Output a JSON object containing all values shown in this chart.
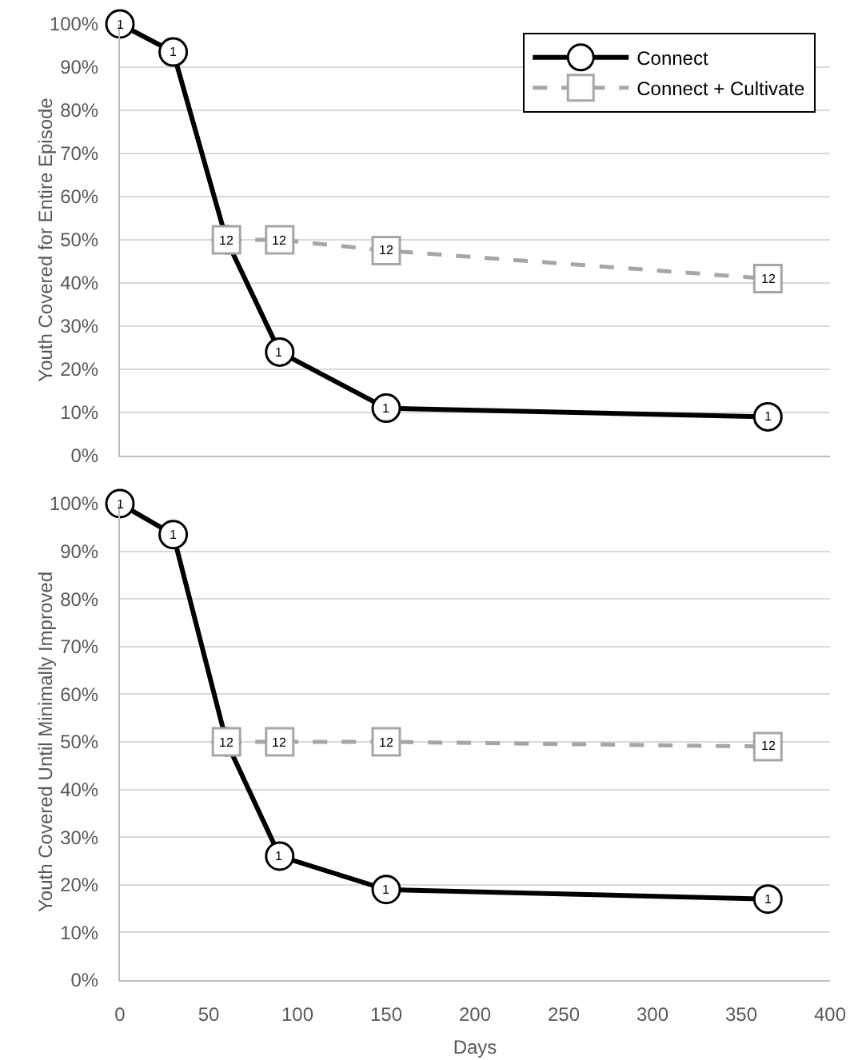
{
  "chart_data": [
    {
      "type": "line",
      "ylabel": "Youth Covered for Entire Episode",
      "xlim": [
        0,
        400
      ],
      "xticks": [
        0,
        50,
        100,
        150,
        200,
        250,
        300,
        350,
        400
      ],
      "ylim": [
        0,
        100
      ],
      "yticks": [
        {
          "value": 0,
          "label": "0%"
        },
        {
          "value": 10,
          "label": "10%"
        },
        {
          "value": 20,
          "label": "20%"
        },
        {
          "value": 30,
          "label": "30%"
        },
        {
          "value": 40,
          "label": "40%"
        },
        {
          "value": 50,
          "label": "50%"
        },
        {
          "value": 60,
          "label": "60%"
        },
        {
          "value": 70,
          "label": "70%"
        },
        {
          "value": 80,
          "label": "80%"
        },
        {
          "value": 90,
          "label": "90%"
        },
        {
          "value": 100,
          "label": "100%"
        }
      ],
      "tick_labels": "y",
      "grid": "y",
      "legend": "top right",
      "series": [
        {
          "name": "Connect",
          "color": "#000000",
          "marker": "circle",
          "line_style": "solid",
          "x": [
            0,
            30,
            60,
            90,
            150,
            365
          ],
          "values": [
            100,
            93.5,
            50,
            24,
            11,
            9
          ]
        },
        {
          "name": "Connect + Cultivate",
          "color": "#a6a6a6",
          "marker": "square",
          "line_style": "dashed",
          "x": [
            60,
            90,
            150,
            365
          ],
          "values": [
            50,
            50,
            47.5,
            41
          ]
        }
      ],
      "annotations": [
        {
          "text": "1",
          "x": 0,
          "y": 100
        },
        {
          "text": "1",
          "x": 30,
          "y": 93.5
        },
        {
          "text": "1",
          "x": 90,
          "y": 24
        },
        {
          "text": "1",
          "x": 150,
          "y": 11
        },
        {
          "text": "1",
          "x": 365,
          "y": 9
        },
        {
          "text": "12",
          "x": 60,
          "y": 50
        },
        {
          "text": "12",
          "x": 90,
          "y": 50
        },
        {
          "text": "12",
          "x": 150,
          "y": 47.5
        },
        {
          "text": "12",
          "x": 365,
          "y": 41
        }
      ]
    },
    {
      "type": "line",
      "xlabel": "Days",
      "ylabel": "Youth Covered Until Minimally Improved",
      "xlim": [
        0,
        400
      ],
      "xticks": [
        0,
        50,
        100,
        150,
        200,
        250,
        300,
        350,
        400
      ],
      "ylim": [
        0,
        100
      ],
      "yticks": [
        {
          "value": 0,
          "label": "0%"
        },
        {
          "value": 10,
          "label": "10%"
        },
        {
          "value": 20,
          "label": "20%"
        },
        {
          "value": 30,
          "label": "30%"
        },
        {
          "value": 40,
          "label": "40%"
        },
        {
          "value": 50,
          "label": "50%"
        },
        {
          "value": 60,
          "label": "60%"
        },
        {
          "value": 70,
          "label": "70%"
        },
        {
          "value": 80,
          "label": "80%"
        },
        {
          "value": 90,
          "label": "90%"
        },
        {
          "value": 100,
          "label": "100%"
        }
      ],
      "grid": "y",
      "series": [
        {
          "color": "#000000",
          "marker": "circle",
          "line_style": "solid",
          "x": [
            0,
            30,
            60,
            90,
            150,
            365
          ],
          "values": [
            100,
            93.5,
            50,
            26,
            19,
            17
          ]
        },
        {
          "color": "#a6a6a6",
          "marker": "square",
          "line_style": "dashed",
          "x": [
            60,
            90,
            150,
            365
          ],
          "values": [
            50,
            50,
            50,
            49
          ]
        }
      ],
      "annotations": [
        {
          "text": "1",
          "x": 0,
          "y": 100
        },
        {
          "text": "1",
          "x": 30,
          "y": 93.5
        },
        {
          "text": "1",
          "x": 90,
          "y": 26
        },
        {
          "text": "1",
          "x": 150,
          "y": 19
        },
        {
          "text": "1",
          "x": 365,
          "y": 17
        },
        {
          "text": "12",
          "x": 60,
          "y": 50
        },
        {
          "text": "12",
          "x": 90,
          "y": 50
        },
        {
          "text": "12",
          "x": 150,
          "y": 50
        },
        {
          "text": "12",
          "x": 365,
          "y": 49
        }
      ]
    }
  ]
}
